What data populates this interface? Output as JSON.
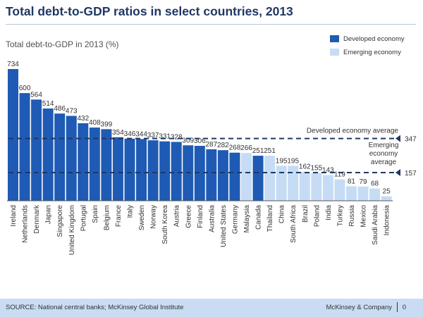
{
  "header": {
    "title": "Total debt-to-GDP  ratios in select countries, 2013"
  },
  "colors": {
    "developed": "#1f5bb4",
    "emerging": "#c6dcf5",
    "text": "#333333",
    "axis": "#555555",
    "reference_line": "#1f3864"
  },
  "chart_data": {
    "type": "bar",
    "title": "Total debt-to-GDP ratios in select countries, 2013",
    "subtitle": "Total debt-to-GDP in 2013 (%)",
    "ylabel": "Total debt-to-GDP in 2013 (%)",
    "ylim": [
      0,
      734
    ],
    "grid": false,
    "legend": [
      {
        "label": "Developed economy",
        "key": "developed"
      },
      {
        "label": "Emerging economy",
        "key": "emerging"
      }
    ],
    "categories": [
      "Ireland",
      "Netherlands",
      "Denmark",
      "Japan",
      "Singapore",
      "United Kingdom",
      "Portugal",
      "Spain",
      "Belgium",
      "France",
      "Italy",
      "Sweden",
      "Norway",
      "South Korea",
      "Austria",
      "Greece",
      "Finland",
      "Australia",
      "United States",
      "Germany",
      "Malaysia",
      "Canada",
      "Thailand",
      "China",
      "South Africa",
      "Brazil",
      "Poland",
      "India",
      "Turkey",
      "Russia",
      "Mexico",
      "Saudi Arabia",
      "Indonesia"
    ],
    "values": [
      734,
      600,
      564,
      514,
      486,
      473,
      432,
      408,
      399,
      354,
      346,
      344,
      337,
      331,
      328,
      309,
      306,
      287,
      282,
      268,
      266,
      251,
      251,
      195,
      195,
      162,
      155,
      143,
      119,
      81,
      79,
      68,
      25
    ],
    "economy": [
      "developed",
      "developed",
      "developed",
      "developed",
      "developed",
      "developed",
      "developed",
      "developed",
      "developed",
      "developed",
      "developed",
      "developed",
      "developed",
      "developed",
      "developed",
      "developed",
      "developed",
      "developed",
      "developed",
      "developed",
      "emerging",
      "developed",
      "emerging",
      "emerging",
      "emerging",
      "emerging",
      "emerging",
      "emerging",
      "emerging",
      "emerging",
      "emerging",
      "emerging",
      "emerging"
    ],
    "reference_lines": [
      {
        "name": "developed-average",
        "label": "Developed economy average",
        "value": 347,
        "value_label": "347"
      },
      {
        "name": "emerging-average",
        "label": "Emerging economy average",
        "label_lines": [
          "Emerging",
          "economy",
          "average"
        ],
        "value": 157,
        "value_label": "157"
      }
    ]
  },
  "footer": {
    "source": "SOURCE: National central banks; McKinsey Global Institute",
    "brand": "McKinsey & Company",
    "page_number": "0"
  }
}
